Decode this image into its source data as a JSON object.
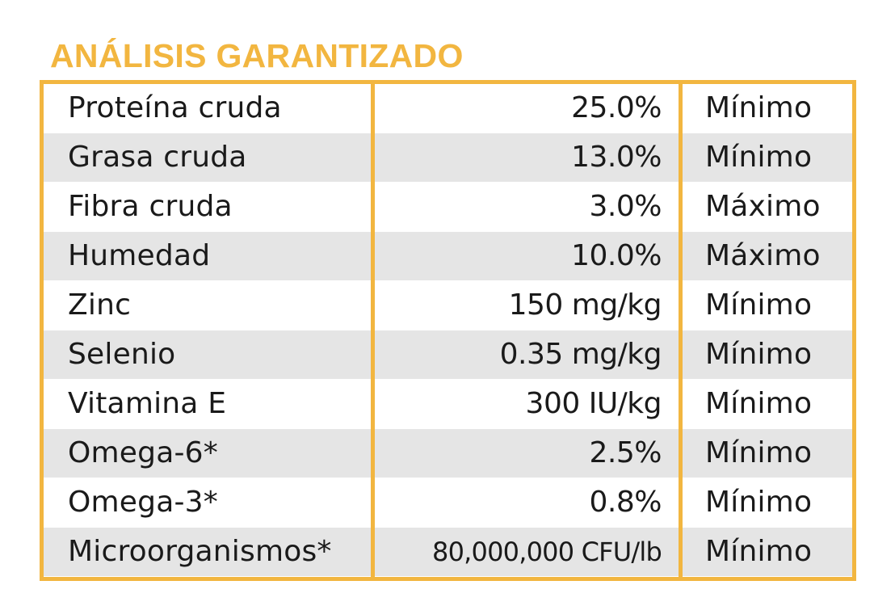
{
  "title": "ANÁLISIS GARANTIZADO",
  "colors": {
    "accent": "#F2B640",
    "row_shade": "#E5E5E5",
    "text": "#1A1A1A"
  },
  "rows": [
    {
      "name": "Proteína cruda",
      "value": "25.0%",
      "qualifier": "Mínimo"
    },
    {
      "name": "Grasa cruda",
      "value": "13.0%",
      "qualifier": "Mínimo"
    },
    {
      "name": "Fibra cruda",
      "value": "3.0%",
      "qualifier": "Máximo"
    },
    {
      "name": "Humedad",
      "value": "10.0%",
      "qualifier": "Máximo"
    },
    {
      "name": "Zinc",
      "value": "150 mg/kg",
      "qualifier": "Mínimo"
    },
    {
      "name": "Selenio",
      "value": "0.35 mg/kg",
      "qualifier": "Mínimo"
    },
    {
      "name": "Vitamina E",
      "value": "300 IU/kg",
      "qualifier": "Mínimo"
    },
    {
      "name": "Omega-6*",
      "value": "2.5%",
      "qualifier": "Mínimo"
    },
    {
      "name": "Omega-3*",
      "value": "0.8%",
      "qualifier": "Mínimo"
    },
    {
      "name": "Microorganismos*",
      "value": "80,000,000 CFU/lb",
      "qualifier": "Mínimo"
    }
  ]
}
